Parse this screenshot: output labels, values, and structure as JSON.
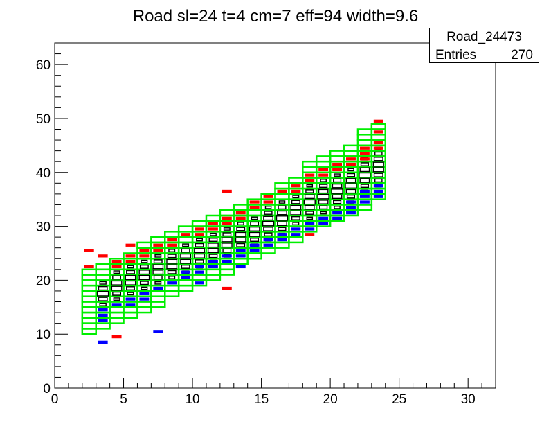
{
  "chart_data": {
    "type": "heatmap",
    "title": "Road sl=24 t=4 cm=7 eff=94 width=9.6",
    "xlabel": "",
    "ylabel": "",
    "xlim": [
      0,
      32
    ],
    "ylim": [
      0,
      64
    ],
    "x_ticks": [
      0,
      5,
      10,
      15,
      20,
      25,
      30
    ],
    "y_ticks": [
      0,
      10,
      20,
      30,
      40,
      50,
      60
    ],
    "grid": false,
    "stats_box": {
      "name": "Road_24473",
      "entries_label": "Entries",
      "entries_value": "270"
    },
    "series": [
      {
        "name": "road",
        "color": "#00ee00",
        "columns": [
          {
            "x0": 2,
            "ymin": 10,
            "ymax": 22
          },
          {
            "x0": 3,
            "ymin": 11,
            "ymax": 23
          },
          {
            "x0": 4,
            "ymin": 12,
            "ymax": 24
          },
          {
            "x0": 5,
            "ymin": 13,
            "ymax": 25
          },
          {
            "x0": 6,
            "ymin": 14,
            "ymax": 27
          },
          {
            "x0": 7,
            "ymin": 15,
            "ymax": 28
          },
          {
            "x0": 8,
            "ymin": 17,
            "ymax": 29
          },
          {
            "x0": 9,
            "ymin": 18,
            "ymax": 30
          },
          {
            "x0": 10,
            "ymin": 19,
            "ymax": 31
          },
          {
            "x0": 11,
            "ymin": 20,
            "ymax": 32
          },
          {
            "x0": 12,
            "ymin": 21,
            "ymax": 33
          },
          {
            "x0": 13,
            "ymin": 23,
            "ymax": 34
          },
          {
            "x0": 14,
            "ymin": 24,
            "ymax": 35
          },
          {
            "x0": 15,
            "ymin": 25,
            "ymax": 36
          },
          {
            "x0": 16,
            "ymin": 26,
            "ymax": 38
          },
          {
            "x0": 17,
            "ymin": 27,
            "ymax": 39
          },
          {
            "x0": 18,
            "ymin": 29,
            "ymax": 42
          },
          {
            "x0": 19,
            "ymin": 30,
            "ymax": 43
          },
          {
            "x0": 20,
            "ymin": 31,
            "ymax": 44
          },
          {
            "x0": 21,
            "ymin": 32,
            "ymax": 45
          },
          {
            "x0": 22,
            "ymin": 33,
            "ymax": 48
          },
          {
            "x0": 23,
            "ymin": 35,
            "ymax": 49
          }
        ]
      },
      {
        "name": "hits",
        "color": "#000000",
        "columns": [
          {
            "x": 3.5,
            "lo": 15,
            "hi": 20
          },
          {
            "x": 4.5,
            "lo": 16,
            "hi": 22
          },
          {
            "x": 5.5,
            "lo": 17,
            "hi": 23
          },
          {
            "x": 6.5,
            "lo": 18,
            "hi": 24
          },
          {
            "x": 7.5,
            "lo": 19,
            "hi": 25
          },
          {
            "x": 8.5,
            "lo": 20,
            "hi": 26
          },
          {
            "x": 9.5,
            "lo": 21,
            "hi": 27
          },
          {
            "x": 10.5,
            "lo": 22,
            "hi": 28
          },
          {
            "x": 11.5,
            "lo": 23,
            "hi": 29
          },
          {
            "x": 12.5,
            "lo": 24,
            "hi": 30
          },
          {
            "x": 13.5,
            "lo": 25,
            "hi": 31
          },
          {
            "x": 14.5,
            "lo": 26,
            "hi": 32
          },
          {
            "x": 15.5,
            "lo": 27,
            "hi": 34
          },
          {
            "x": 16.5,
            "lo": 28,
            "hi": 35
          },
          {
            "x": 17.5,
            "lo": 30,
            "hi": 36
          },
          {
            "x": 18.5,
            "lo": 31,
            "hi": 38
          },
          {
            "x": 19.5,
            "lo": 32,
            "hi": 39
          },
          {
            "x": 20.5,
            "lo": 33,
            "hi": 40
          },
          {
            "x": 21.5,
            "lo": 34,
            "hi": 41
          },
          {
            "x": 22.5,
            "lo": 36,
            "hi": 43
          },
          {
            "x": 23.5,
            "lo": 37,
            "hi": 45
          }
        ]
      },
      {
        "name": "upper",
        "color": "#ff0000",
        "points": [
          [
            2.5,
            25.5
          ],
          [
            2.5,
            22.5
          ],
          [
            3.5,
            24.5
          ],
          [
            4.5,
            23.5
          ],
          [
            4.5,
            22.5
          ],
          [
            5.5,
            26.5
          ],
          [
            5.5,
            24.5
          ],
          [
            5.5,
            23.5
          ],
          [
            6.5,
            25.5
          ],
          [
            6.5,
            24.5
          ],
          [
            7.5,
            26.5
          ],
          [
            7.5,
            25.5
          ],
          [
            8.5,
            27.5
          ],
          [
            8.5,
            26.5
          ],
          [
            9.5,
            28.5
          ],
          [
            10.5,
            29.5
          ],
          [
            10.5,
            28.5
          ],
          [
            11.5,
            30.5
          ],
          [
            11.5,
            29.5
          ],
          [
            12.5,
            36.5
          ],
          [
            12.5,
            31.5
          ],
          [
            12.5,
            30.5
          ],
          [
            13.5,
            32.5
          ],
          [
            13.5,
            31.5
          ],
          [
            14.5,
            34.5
          ],
          [
            14.5,
            33.5
          ],
          [
            15.5,
            34.5
          ],
          [
            15.5,
            35.5
          ],
          [
            16.5,
            36.5
          ],
          [
            17.5,
            37.5
          ],
          [
            17.5,
            36.5
          ],
          [
            18.5,
            39.5
          ],
          [
            18.5,
            38.5
          ],
          [
            19.5,
            40.5
          ],
          [
            19.5,
            39.5
          ],
          [
            20.5,
            41.5
          ],
          [
            20.5,
            40.5
          ],
          [
            21.5,
            42.5
          ],
          [
            21.5,
            41.5
          ],
          [
            22.5,
            44.5
          ],
          [
            22.5,
            43.5
          ],
          [
            22.5,
            42.5
          ],
          [
            23.5,
            49.5
          ],
          [
            23.5,
            47.5
          ],
          [
            23.5,
            45.5
          ],
          [
            23.5,
            44.5
          ],
          [
            4.5,
            9.5
          ],
          [
            12.5,
            18.5
          ],
          [
            18.5,
            28.5
          ]
        ]
      },
      {
        "name": "lower",
        "color": "#0000ff",
        "points": [
          [
            3.5,
            8.5
          ],
          [
            3.5,
            12.5
          ],
          [
            3.5,
            13.5
          ],
          [
            3.5,
            14.5
          ],
          [
            4.5,
            15.5
          ],
          [
            5.5,
            16.5
          ],
          [
            5.5,
            15.5
          ],
          [
            6.5,
            17.5
          ],
          [
            6.5,
            16.5
          ],
          [
            7.5,
            10.5
          ],
          [
            7.5,
            18.5
          ],
          [
            8.5,
            19.5
          ],
          [
            9.5,
            20.5
          ],
          [
            9.5,
            21.5
          ],
          [
            10.5,
            21.5
          ],
          [
            10.5,
            22.5
          ],
          [
            10.5,
            19.5
          ],
          [
            11.5,
            23.5
          ],
          [
            11.5,
            22.5
          ],
          [
            12.5,
            23.5
          ],
          [
            12.5,
            24.5
          ],
          [
            13.5,
            25.5
          ],
          [
            13.5,
            24.5
          ],
          [
            13.5,
            22.5
          ],
          [
            14.5,
            26.5
          ],
          [
            14.5,
            25.5
          ],
          [
            15.5,
            27.5
          ],
          [
            15.5,
            26.5
          ],
          [
            16.5,
            28.5
          ],
          [
            16.5,
            27.5
          ],
          [
            17.5,
            29.5
          ],
          [
            17.5,
            28.5
          ],
          [
            18.5,
            30.5
          ],
          [
            18.5,
            29.5
          ],
          [
            19.5,
            31.5
          ],
          [
            19.5,
            30.5
          ],
          [
            20.5,
            32.5
          ],
          [
            20.5,
            31.5
          ],
          [
            21.5,
            33.5
          ],
          [
            21.5,
            32.5
          ],
          [
            22.5,
            35.5
          ],
          [
            22.5,
            34.5
          ],
          [
            22.5,
            36.5
          ],
          [
            23.5,
            36.5
          ],
          [
            23.5,
            35.5
          ],
          [
            23.5,
            37.5
          ],
          [
            21.5,
            34.5
          ]
        ]
      }
    ]
  }
}
